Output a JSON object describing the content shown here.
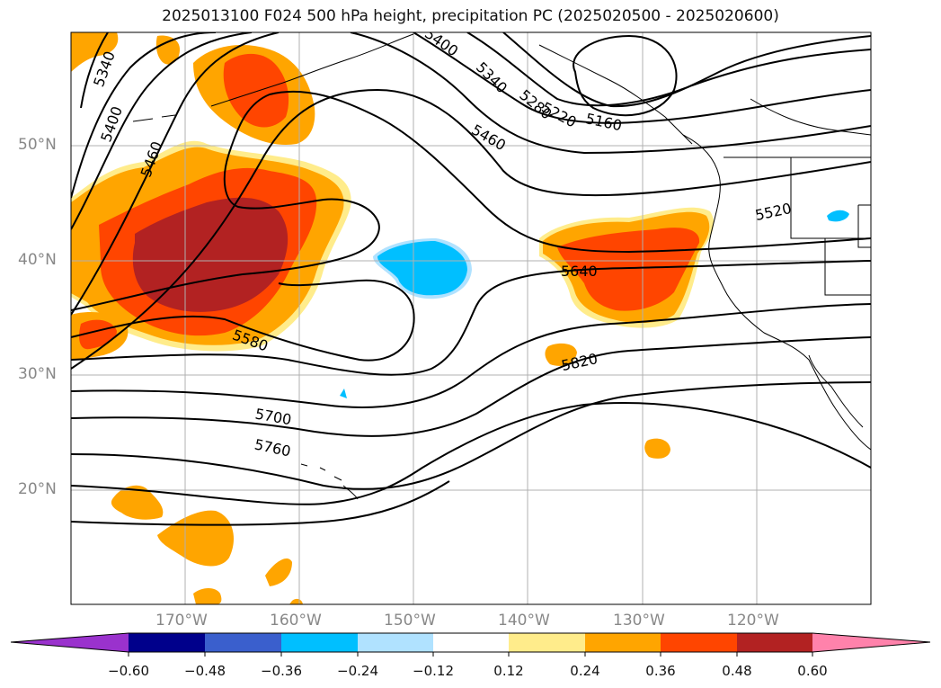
{
  "title": "2025013100 F024 500 hPa height, precipitation PC (2025020500 - 2025020600)",
  "lat_labels": [
    "50°N",
    "40°N",
    "30°N",
    "20°N"
  ],
  "lon_labels": [
    "170°W",
    "160°W",
    "150°W",
    "140°W",
    "130°W",
    "120°W"
  ],
  "contour_labels": [
    "5340",
    "5400",
    "5460",
    "5400",
    "5340",
    "5280",
    "5220",
    "5160",
    "5460",
    "5520",
    "5580",
    "5640",
    "5700",
    "5760",
    "5820"
  ],
  "colorbar": {
    "ticks": [
      "−0.60",
      "−0.48",
      "−0.36",
      "−0.24",
      "−0.12",
      "0.12",
      "0.24",
      "0.36",
      "0.48",
      "0.60"
    ],
    "colors": [
      "#9a32cd",
      "#00008b",
      "#3a5fcd",
      "#00bfff",
      "#b0e2ff",
      "#ffffff",
      "#ffec8b",
      "#ffa500",
      "#ff4500",
      "#b22222",
      "#ff82ab"
    ]
  }
}
